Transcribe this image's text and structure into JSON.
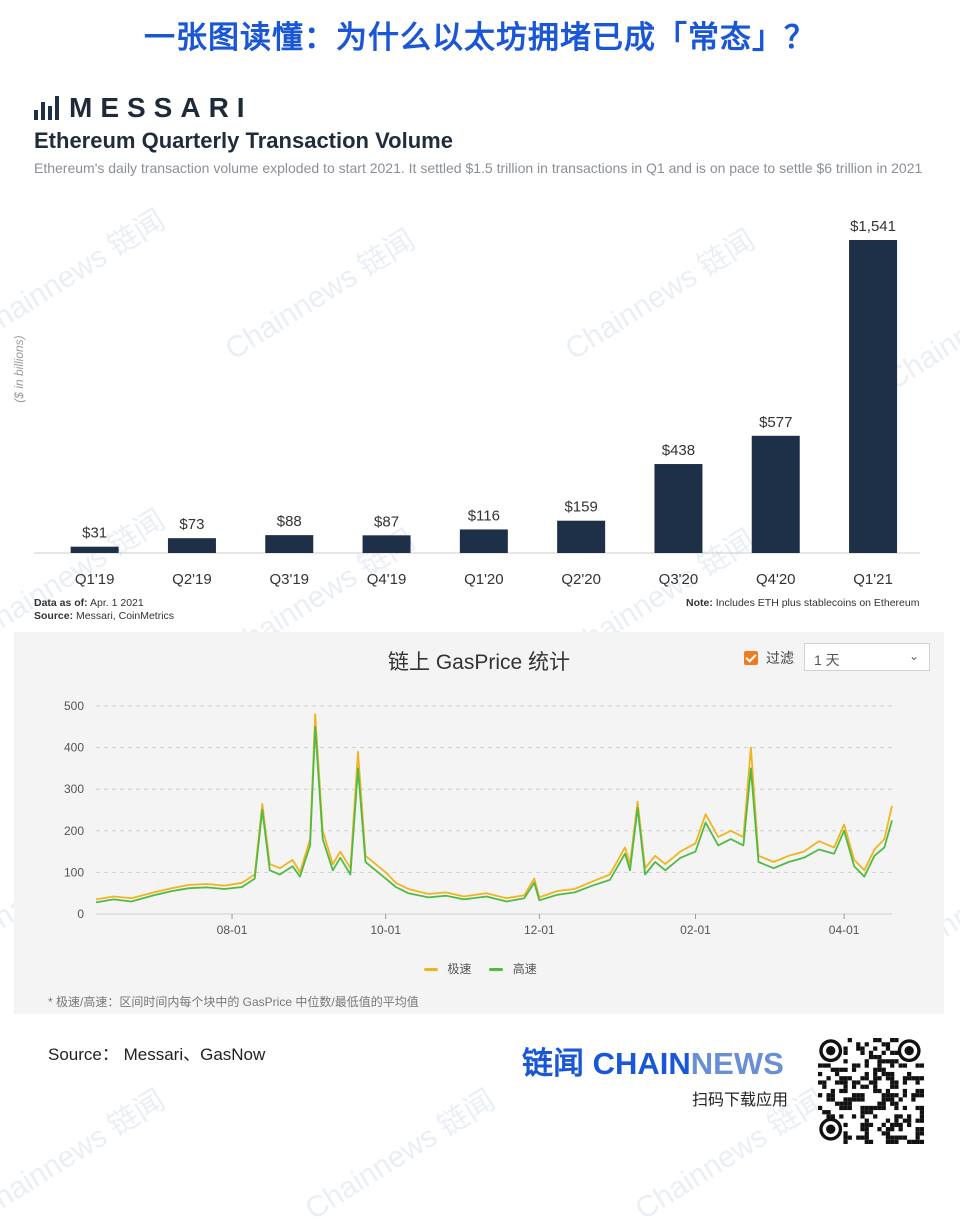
{
  "page_title": "一张图读懂：为什么以太坊拥堵已成「常态」？",
  "watermark": "Chainnews 链闻",
  "messari": {
    "logo_text": "MESSARI",
    "title": "Ethereum Quarterly Transaction Volume",
    "subtitle": "Ethereum's daily transaction volume exploded to start 2021. It settled $1.5 trillion in transactions in Q1 and is on pace to settle $6 trillion in 2021",
    "ylabel": "($ in billions)",
    "data_as_of_label": "Data as of:",
    "data_as_of": "Apr. 1 2021",
    "source_label": "Source:",
    "source": "Messari, CoinMetrics",
    "note_label": "Note:",
    "note": "Includes ETH plus stablecoins on Ethereum",
    "bar_color": "#1e3048"
  },
  "gas": {
    "title": "链上 GasPrice 统计",
    "filter_label": "过滤",
    "filter_checked": true,
    "select_value": "1 天",
    "legend": [
      "极速",
      "高速"
    ],
    "colors": {
      "fast": "#f0b41e",
      "standard": "#4fbb46"
    },
    "footnote": "* 极速/高速：区间时间内每个块中的 GasPrice 中位数/最低值的平均值"
  },
  "footer": {
    "source": "Source： Messari、GasNow",
    "brand_cn": "链闻",
    "brand_en_a": "CHAIN",
    "brand_en_b": "NEWS",
    "brand_sub": "扫码下载应用"
  },
  "chart_data": [
    {
      "type": "bar",
      "title": "Ethereum Quarterly Transaction Volume",
      "ylabel": "($ in billions)",
      "categories": [
        "Q1'19",
        "Q2'19",
        "Q3'19",
        "Q4'19",
        "Q1'20",
        "Q2'20",
        "Q3'20",
        "Q4'20",
        "Q1'21"
      ],
      "values": [
        31,
        73,
        88,
        87,
        116,
        159,
        438,
        577,
        1541
      ],
      "labels": [
        "$31",
        "$73",
        "$88",
        "$87",
        "$116",
        "$159",
        "$438",
        "$577",
        "$1,541"
      ],
      "ylim": [
        0,
        1541
      ]
    },
    {
      "type": "line",
      "title": "链上 GasPrice 统计",
      "ylim": [
        0,
        500
      ],
      "yticks": [
        0,
        100,
        200,
        300,
        400,
        500
      ],
      "xticks": [
        "08-01",
        "10-01",
        "12-01",
        "02-01",
        "04-01"
      ],
      "x_range": [
        "2020-06-08",
        "2021-04-20"
      ],
      "grid": true,
      "legend_position": "bottom",
      "series": [
        {
          "name": "极速",
          "points": [
            [
              "2020-06-08",
              35
            ],
            [
              "2020-06-15",
              42
            ],
            [
              "2020-06-22",
              38
            ],
            [
              "2020-07-01",
              52
            ],
            [
              "2020-07-08",
              62
            ],
            [
              "2020-07-15",
              70
            ],
            [
              "2020-07-22",
              72
            ],
            [
              "2020-07-29",
              68
            ],
            [
              "2020-08-05",
              75
            ],
            [
              "2020-08-10",
              95
            ],
            [
              "2020-08-13",
              265
            ],
            [
              "2020-08-16",
              120
            ],
            [
              "2020-08-20",
              110
            ],
            [
              "2020-08-25",
              130
            ],
            [
              "2020-08-28",
              100
            ],
            [
              "2020-09-01",
              180
            ],
            [
              "2020-09-03",
              480
            ],
            [
              "2020-09-06",
              200
            ],
            [
              "2020-09-10",
              120
            ],
            [
              "2020-09-13",
              150
            ],
            [
              "2020-09-17",
              110
            ],
            [
              "2020-09-20",
              390
            ],
            [
              "2020-09-23",
              140
            ],
            [
              "2020-09-27",
              120
            ],
            [
              "2020-10-01",
              100
            ],
            [
              "2020-10-05",
              75
            ],
            [
              "2020-10-10",
              60
            ],
            [
              "2020-10-18",
              48
            ],
            [
              "2020-10-25",
              52
            ],
            [
              "2020-11-01",
              42
            ],
            [
              "2020-11-10",
              50
            ],
            [
              "2020-11-18",
              38
            ],
            [
              "2020-11-25",
              45
            ],
            [
              "2020-11-29",
              85
            ],
            [
              "2020-12-01",
              40
            ],
            [
              "2020-12-08",
              55
            ],
            [
              "2020-12-15",
              60
            ],
            [
              "2020-12-22",
              78
            ],
            [
              "2020-12-29",
              95
            ],
            [
              "2021-01-04",
              160
            ],
            [
              "2021-01-06",
              120
            ],
            [
              "2021-01-09",
              270
            ],
            [
              "2021-01-12",
              110
            ],
            [
              "2021-01-16",
              140
            ],
            [
              "2021-01-20",
              120
            ],
            [
              "2021-01-26",
              150
            ],
            [
              "2021-02-01",
              170
            ],
            [
              "2021-02-05",
              240
            ],
            [
              "2021-02-10",
              185
            ],
            [
              "2021-02-15",
              200
            ],
            [
              "2021-02-20",
              185
            ],
            [
              "2021-02-23",
              400
            ],
            [
              "2021-02-26",
              140
            ],
            [
              "2021-03-04",
              125
            ],
            [
              "2021-03-10",
              140
            ],
            [
              "2021-03-16",
              150
            ],
            [
              "2021-03-22",
              175
            ],
            [
              "2021-03-28",
              160
            ],
            [
              "2021-04-01",
              215
            ],
            [
              "2021-04-05",
              130
            ],
            [
              "2021-04-09",
              105
            ],
            [
              "2021-04-13",
              155
            ],
            [
              "2021-04-17",
              180
            ],
            [
              "2021-04-20",
              260
            ]
          ]
        },
        {
          "name": "高速",
          "points": [
            [
              "2020-06-08",
              28
            ],
            [
              "2020-06-15",
              35
            ],
            [
              "2020-06-22",
              30
            ],
            [
              "2020-07-01",
              45
            ],
            [
              "2020-07-08",
              55
            ],
            [
              "2020-07-15",
              62
            ],
            [
              "2020-07-22",
              64
            ],
            [
              "2020-07-29",
              60
            ],
            [
              "2020-08-05",
              65
            ],
            [
              "2020-08-10",
              85
            ],
            [
              "2020-08-13",
              250
            ],
            [
              "2020-08-16",
              105
            ],
            [
              "2020-08-20",
              95
            ],
            [
              "2020-08-25",
              115
            ],
            [
              "2020-08-28",
              90
            ],
            [
              "2020-09-01",
              165
            ],
            [
              "2020-09-03",
              450
            ],
            [
              "2020-09-06",
              180
            ],
            [
              "2020-09-10",
              105
            ],
            [
              "2020-09-13",
              135
            ],
            [
              "2020-09-17",
              95
            ],
            [
              "2020-09-20",
              350
            ],
            [
              "2020-09-23",
              125
            ],
            [
              "2020-09-27",
              105
            ],
            [
              "2020-10-01",
              85
            ],
            [
              "2020-10-05",
              65
            ],
            [
              "2020-10-10",
              50
            ],
            [
              "2020-10-18",
              40
            ],
            [
              "2020-10-25",
              44
            ],
            [
              "2020-11-01",
              35
            ],
            [
              "2020-11-10",
              42
            ],
            [
              "2020-11-18",
              30
            ],
            [
              "2020-11-25",
              38
            ],
            [
              "2020-11-29",
              75
            ],
            [
              "2020-12-01",
              33
            ],
            [
              "2020-12-08",
              46
            ],
            [
              "2020-12-15",
              52
            ],
            [
              "2020-12-22",
              68
            ],
            [
              "2020-12-29",
              82
            ],
            [
              "2021-01-04",
              145
            ],
            [
              "2021-01-06",
              105
            ],
            [
              "2021-01-09",
              255
            ],
            [
              "2021-01-12",
              95
            ],
            [
              "2021-01-16",
              125
            ],
            [
              "2021-01-20",
              105
            ],
            [
              "2021-01-26",
              135
            ],
            [
              "2021-02-01",
              150
            ],
            [
              "2021-02-05",
              220
            ],
            [
              "2021-02-10",
              165
            ],
            [
              "2021-02-15",
              180
            ],
            [
              "2021-02-20",
              165
            ],
            [
              "2021-02-23",
              350
            ],
            [
              "2021-02-26",
              125
            ],
            [
              "2021-03-04",
              110
            ],
            [
              "2021-03-10",
              125
            ],
            [
              "2021-03-16",
              135
            ],
            [
              "2021-03-22",
              155
            ],
            [
              "2021-03-28",
              145
            ],
            [
              "2021-04-01",
              200
            ],
            [
              "2021-04-05",
              115
            ],
            [
              "2021-04-09",
              90
            ],
            [
              "2021-04-13",
              140
            ],
            [
              "2021-04-17",
              160
            ],
            [
              "2021-04-20",
              225
            ]
          ]
        }
      ]
    }
  ]
}
